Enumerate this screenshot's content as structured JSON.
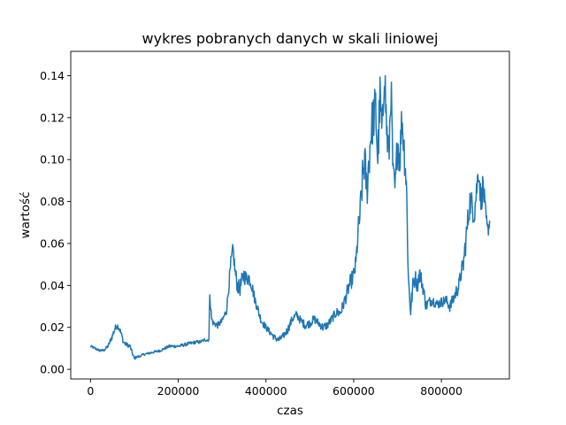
{
  "chart_data": {
    "type": "line",
    "title": "wykres pobranych danych w skali liniowej",
    "xlabel": "czas",
    "ylabel": "wartość",
    "xlim": [
      -45000,
      955000
    ],
    "ylim": [
      -0.0046,
      0.1516
    ],
    "xticks": [
      0,
      200000,
      400000,
      600000,
      800000
    ],
    "xtick_labels": [
      "0",
      "200000",
      "400000",
      "600000",
      "800000"
    ],
    "yticks": [
      0.0,
      0.02,
      0.04,
      0.06,
      0.08,
      0.1,
      0.12,
      0.14
    ],
    "ytick_labels": [
      "0.00",
      "0.02",
      "0.04",
      "0.06",
      "0.08",
      "0.10",
      "0.12",
      "0.14"
    ],
    "grid": false,
    "series": [
      {
        "color": "#1f77b4",
        "x": [
          0,
          20000,
          30000,
          40000,
          50000,
          55000,
          60000,
          65000,
          70000,
          75000,
          80000,
          90000,
          100000,
          105000,
          110000,
          120000,
          140000,
          160000,
          180000,
          200000,
          220000,
          240000,
          250000,
          260000,
          270000,
          272000,
          274000,
          276000,
          280000,
          290000,
          300000,
          310000,
          320000,
          325000,
          330000,
          335000,
          340000,
          345000,
          350000,
          355000,
          360000,
          365000,
          370000,
          375000,
          380000,
          385000,
          390000,
          400000,
          420000,
          430000,
          440000,
          450000,
          460000,
          470000,
          480000,
          490000,
          500000,
          510000,
          520000,
          530000,
          540000,
          550000,
          560000,
          570000,
          580000,
          590000,
          600000,
          605000,
          610000,
          615000,
          620000,
          625000,
          630000,
          640000,
          650000,
          655000,
          660000,
          665000,
          670000,
          675000,
          680000,
          685000,
          690000,
          695000,
          700000,
          705000,
          710000,
          715000,
          720000,
          725000,
          730000,
          735000,
          740000,
          745000,
          750000,
          755000,
          760000,
          765000,
          770000,
          780000,
          790000,
          800000,
          810000,
          820000,
          830000,
          840000,
          845000,
          850000,
          855000,
          860000,
          865000,
          870000,
          875000,
          880000,
          885000,
          890000,
          895000,
          900000,
          905000,
          910000
        ],
        "y": [
          0.011,
          0.009,
          0.009,
          0.011,
          0.016,
          0.019,
          0.021,
          0.02,
          0.017,
          0.013,
          0.012,
          0.011,
          0.005,
          0.006,
          0.006,
          0.007,
          0.008,
          0.009,
          0.011,
          0.011,
          0.012,
          0.013,
          0.013,
          0.014,
          0.014,
          0.038,
          0.03,
          0.024,
          0.022,
          0.021,
          0.023,
          0.028,
          0.05,
          0.057,
          0.046,
          0.04,
          0.038,
          0.042,
          0.045,
          0.043,
          0.044,
          0.042,
          0.038,
          0.033,
          0.03,
          0.026,
          0.023,
          0.02,
          0.015,
          0.014,
          0.016,
          0.019,
          0.024,
          0.026,
          0.023,
          0.021,
          0.022,
          0.024,
          0.022,
          0.02,
          0.021,
          0.024,
          0.027,
          0.027,
          0.033,
          0.04,
          0.045,
          0.05,
          0.065,
          0.075,
          0.09,
          0.1,
          0.085,
          0.115,
          0.125,
          0.1,
          0.13,
          0.11,
          0.145,
          0.115,
          0.1,
          0.135,
          0.09,
          0.085,
          0.11,
          0.1,
          0.12,
          0.105,
          0.09,
          0.042,
          0.028,
          0.04,
          0.044,
          0.04,
          0.046,
          0.042,
          0.037,
          0.03,
          0.032,
          0.033,
          0.031,
          0.032,
          0.033,
          0.03,
          0.035,
          0.04,
          0.046,
          0.05,
          0.06,
          0.07,
          0.08,
          0.078,
          0.075,
          0.085,
          0.096,
          0.08,
          0.088,
          0.075,
          0.066,
          0.07
        ],
        "noise": [
          0.0006,
          0.0006,
          0.0006,
          0.0008,
          0.0015,
          0.0015,
          0.0015,
          0.0015,
          0.0015,
          0.001,
          0.001,
          0.001,
          0.0008,
          0.0005,
          0.0005,
          0.0005,
          0.0006,
          0.0006,
          0.0007,
          0.0007,
          0.0008,
          0.0008,
          0.0008,
          0.0008,
          0.0008,
          0.004,
          0.003,
          0.002,
          0.0015,
          0.0015,
          0.0015,
          0.002,
          0.004,
          0.004,
          0.004,
          0.004,
          0.004,
          0.004,
          0.004,
          0.004,
          0.004,
          0.003,
          0.003,
          0.0025,
          0.0025,
          0.002,
          0.002,
          0.0015,
          0.0015,
          0.0015,
          0.0015,
          0.002,
          0.002,
          0.002,
          0.002,
          0.002,
          0.002,
          0.002,
          0.002,
          0.002,
          0.002,
          0.002,
          0.0025,
          0.0025,
          0.003,
          0.004,
          0.004,
          0.005,
          0.006,
          0.008,
          0.01,
          0.01,
          0.01,
          0.012,
          0.012,
          0.012,
          0.012,
          0.012,
          0.012,
          0.012,
          0.012,
          0.012,
          0.01,
          0.01,
          0.01,
          0.01,
          0.01,
          0.01,
          0.01,
          0.006,
          0.005,
          0.004,
          0.004,
          0.004,
          0.004,
          0.004,
          0.003,
          0.003,
          0.0025,
          0.0025,
          0.0025,
          0.0025,
          0.0025,
          0.003,
          0.003,
          0.004,
          0.004,
          0.005,
          0.006,
          0.007,
          0.007,
          0.007,
          0.007,
          0.007,
          0.007,
          0.007,
          0.007,
          0.005,
          0.004,
          0.004
        ]
      }
    ]
  }
}
